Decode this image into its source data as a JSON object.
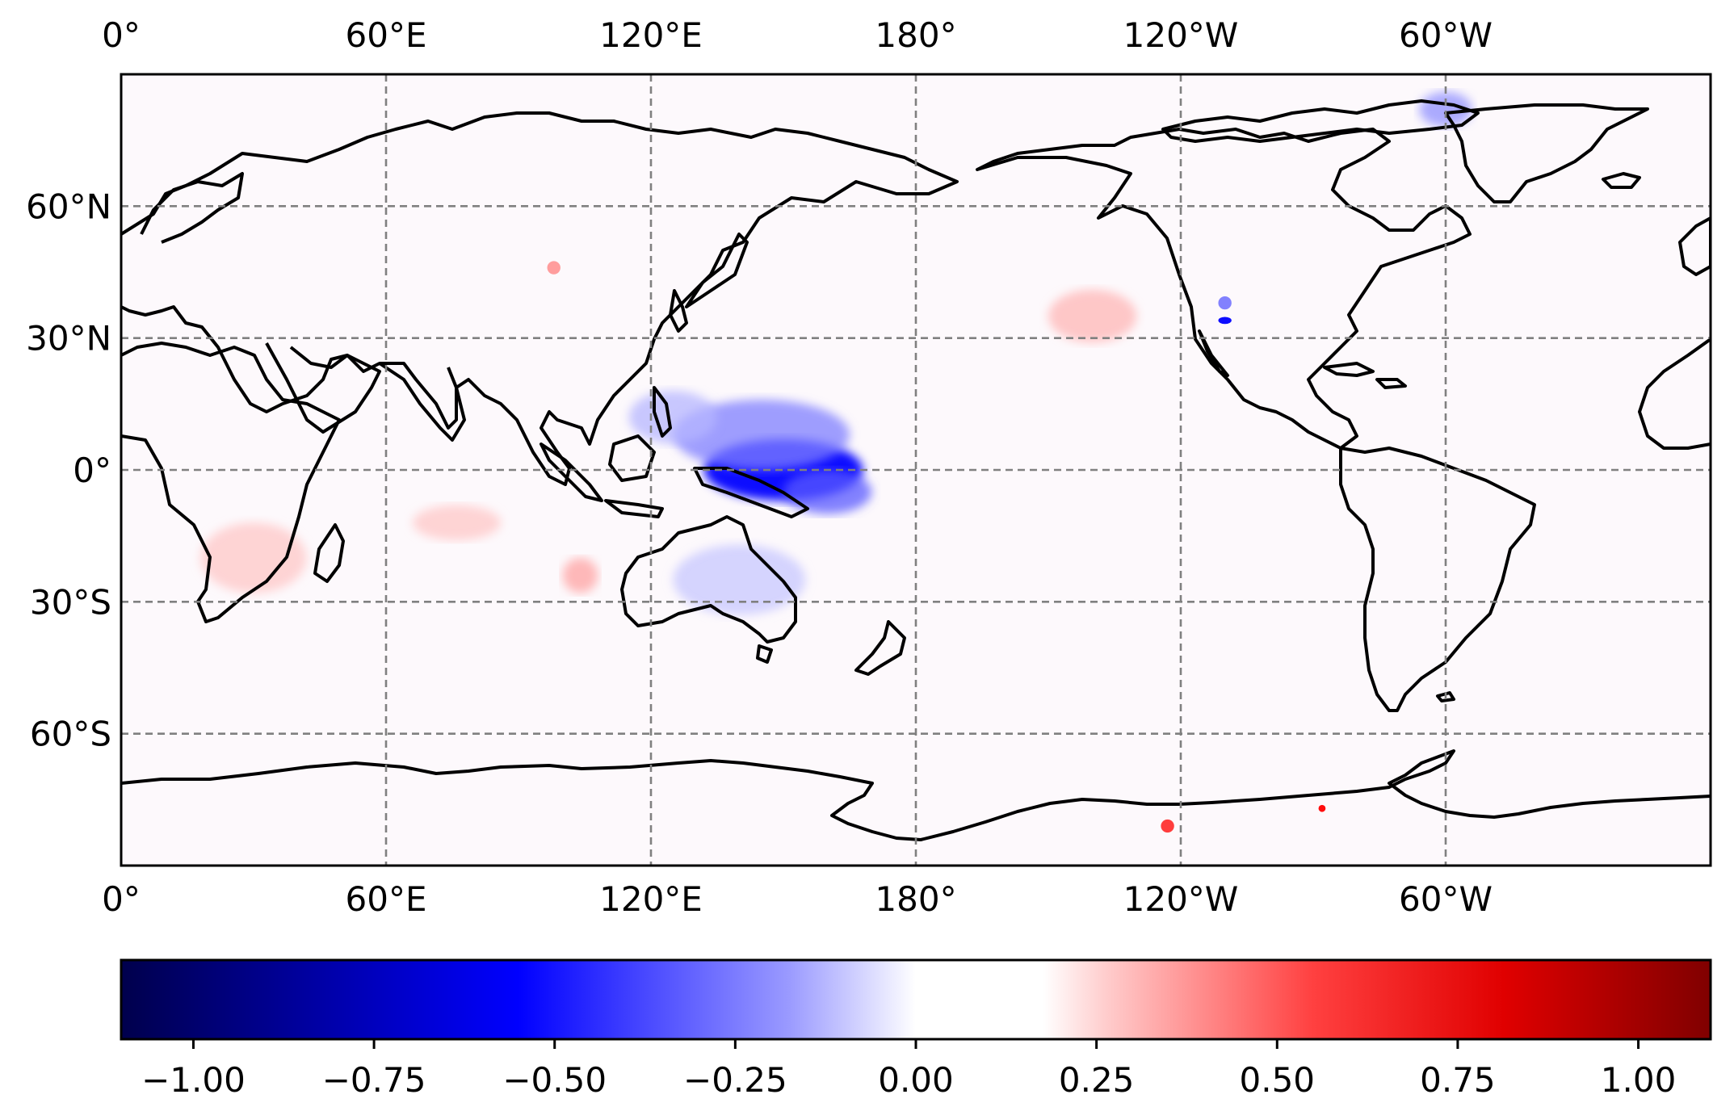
{
  "map": {
    "lon_labels_top": [
      "0°",
      "60°E",
      "120°E",
      "180°",
      "120°W",
      "60°W"
    ],
    "lon_labels_bottom": [
      "0°",
      "60°E",
      "120°E",
      "180°",
      "120°W",
      "60°W"
    ],
    "lat_labels": [
      "60°N",
      "30°N",
      "0°",
      "30°S",
      "60°S"
    ],
    "lon_values": [
      0,
      60,
      120,
      180,
      240,
      300
    ],
    "lat_values": [
      60,
      30,
      0,
      -30,
      -60
    ],
    "lon_range": [
      0,
      360
    ],
    "lat_range": [
      -90,
      90
    ],
    "gridlines": "dashed",
    "colormap": "seismic",
    "anomalies": [
      {
        "lon": 150,
        "lat": 0,
        "value": -0.7,
        "rx": 18,
        "ry": 7
      },
      {
        "lon": 145,
        "lat": 8,
        "value": -0.35,
        "rx": 20,
        "ry": 8
      },
      {
        "lon": 160,
        "lat": -5,
        "value": -0.45,
        "rx": 10,
        "ry": 5
      },
      {
        "lon": 125,
        "lat": 12,
        "value": -0.2,
        "rx": 10,
        "ry": 6
      },
      {
        "lon": 140,
        "lat": -25,
        "value": -0.15,
        "rx": 15,
        "ry": 8
      },
      {
        "lon": 104,
        "lat": -24,
        "value": 0.25,
        "rx": 4,
        "ry": 4
      },
      {
        "lon": 98,
        "lat": 46,
        "value": 0.35,
        "rx": 1.5,
        "ry": 1.5
      },
      {
        "lon": 220,
        "lat": 35,
        "value": 0.2,
        "rx": 10,
        "ry": 6
      },
      {
        "lon": 250,
        "lat": 38,
        "value": -0.45,
        "rx": 1.5,
        "ry": 1.5
      },
      {
        "lon": 250,
        "lat": 34,
        "value": -0.9,
        "rx": 1.5,
        "ry": 0.8
      },
      {
        "lon": 237,
        "lat": -81,
        "value": 0.55,
        "rx": 1.5,
        "ry": 1.5
      },
      {
        "lon": 272,
        "lat": -77,
        "value": 0.8,
        "rx": 0.8,
        "ry": 0.8
      },
      {
        "lon": 300,
        "lat": 82,
        "value": -0.3,
        "rx": 6,
        "ry": 4
      },
      {
        "lon": 30,
        "lat": -20,
        "value": 0.15,
        "rx": 12,
        "ry": 8
      },
      {
        "lon": 76,
        "lat": -12,
        "value": 0.15,
        "rx": 10,
        "ry": 4
      }
    ]
  },
  "colorbar": {
    "min": -1.1,
    "max": 1.1,
    "tick_values": [
      -1.0,
      -0.75,
      -0.5,
      -0.25,
      0.0,
      0.25,
      0.5,
      0.75,
      1.0
    ],
    "tick_labels": [
      "−1.00",
      "−0.75",
      "−0.50",
      "−0.25",
      "0.00",
      "0.25",
      "0.50",
      "0.75",
      "1.00"
    ]
  }
}
